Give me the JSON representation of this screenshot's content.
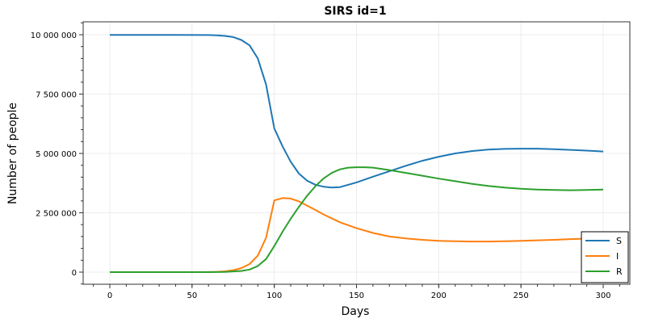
{
  "chart_data": {
    "type": "line",
    "title": "SIRS id=1",
    "xlabel": "Days",
    "ylabel": "Number of people",
    "xlim": [
      0,
      300
    ],
    "ylim": [
      0,
      10000000
    ],
    "x_ticks": [
      "0",
      "50",
      "100",
      "150",
      "200",
      "250",
      "300"
    ],
    "y_ticks": [
      "0",
      "2 500 000",
      "5 000 000",
      "7 500 000",
      "10 000 000"
    ],
    "grid": true,
    "legend_position": "bottom-right",
    "series": [
      {
        "name": "S",
        "color": "#1f77b4",
        "x": [
          0,
          20,
          40,
          60,
          65,
          70,
          75,
          80,
          85,
          90,
          95,
          100,
          105,
          110,
          115,
          120,
          125,
          130,
          135,
          140,
          150,
          160,
          170,
          180,
          190,
          200,
          210,
          220,
          230,
          240,
          250,
          260,
          270,
          280,
          290,
          300
        ],
        "y": [
          9990000,
          9990000,
          9990000,
          9985000,
          9975000,
          9950000,
          9900000,
          9780000,
          9550000,
          9000000,
          7900000,
          6050000,
          5300000,
          4650000,
          4150000,
          3850000,
          3680000,
          3600000,
          3560000,
          3580000,
          3780000,
          4020000,
          4250000,
          4480000,
          4690000,
          4860000,
          5000000,
          5100000,
          5160000,
          5190000,
          5200000,
          5200000,
          5180000,
          5150000,
          5120000,
          5080000
        ]
      },
      {
        "name": "I",
        "color": "#ff7f0e",
        "x": [
          0,
          20,
          40,
          60,
          65,
          70,
          75,
          80,
          85,
          90,
          95,
          100,
          105,
          110,
          115,
          120,
          125,
          130,
          140,
          150,
          160,
          170,
          180,
          190,
          200,
          210,
          220,
          230,
          240,
          250,
          260,
          270,
          280,
          290,
          300
        ],
        "y": [
          0,
          0,
          0,
          5000,
          15000,
          35000,
          80000,
          170000,
          340000,
          700000,
          1450000,
          3020000,
          3120000,
          3100000,
          2980000,
          2800000,
          2620000,
          2430000,
          2100000,
          1850000,
          1650000,
          1500000,
          1420000,
          1360000,
          1320000,
          1300000,
          1290000,
          1290000,
          1300000,
          1320000,
          1340000,
          1360000,
          1390000,
          1410000,
          1430000
        ]
      },
      {
        "name": "R",
        "color": "#2ca02c",
        "x": [
          0,
          20,
          40,
          60,
          70,
          80,
          85,
          90,
          95,
          100,
          105,
          110,
          115,
          120,
          125,
          130,
          135,
          140,
          145,
          150,
          155,
          160,
          170,
          180,
          190,
          200,
          210,
          220,
          230,
          240,
          250,
          260,
          270,
          280,
          290,
          300
        ],
        "y": [
          0,
          0,
          0,
          0,
          10000,
          50000,
          110000,
          260000,
          550000,
          1100000,
          1700000,
          2250000,
          2750000,
          3220000,
          3620000,
          3950000,
          4180000,
          4330000,
          4400000,
          4420000,
          4420000,
          4400000,
          4300000,
          4180000,
          4060000,
          3940000,
          3830000,
          3720000,
          3630000,
          3560000,
          3510000,
          3480000,
          3460000,
          3450000,
          3460000,
          3480000
        ]
      }
    ]
  }
}
